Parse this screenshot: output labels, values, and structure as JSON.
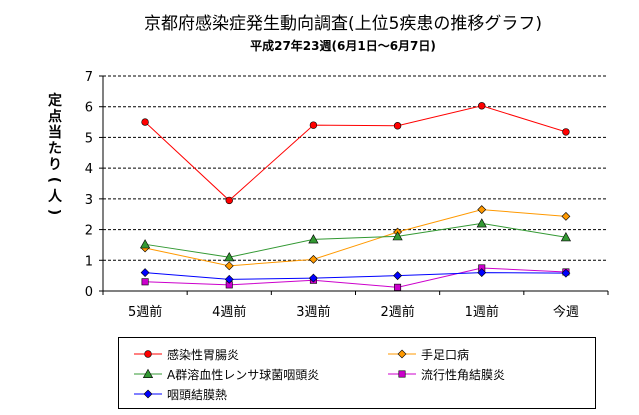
{
  "chart_data": {
    "type": "line",
    "title": "京都府感染症発生動向調査(上位5疾患の推移グラフ)",
    "subtitle": "平成27年23週(6月1日～6月7日)",
    "ylabel": "定点当たり(人)",
    "xlabel": "",
    "categories": [
      "5週前",
      "4週前",
      "3週前",
      "2週前",
      "1週前",
      "今週"
    ],
    "ylim": [
      0,
      7
    ],
    "yticks": [
      "0",
      "1",
      "2",
      "3",
      "4",
      "5",
      "6",
      "7"
    ],
    "grid": "horizontal-dashed",
    "legend_position": "bottom",
    "series": [
      {
        "name": "感染性胃腸炎",
        "color": "#ff0000",
        "marker": "circle",
        "values": [
          5.5,
          2.95,
          5.4,
          5.38,
          6.03,
          5.18
        ]
      },
      {
        "name": "手足口病",
        "color": "#ff9900",
        "marker": "diamond",
        "values": [
          1.4,
          0.82,
          1.03,
          1.92,
          2.65,
          2.43
        ]
      },
      {
        "name": "A群溶血性レンサ球菌咽頭炎",
        "color": "#339933",
        "marker": "triangle",
        "values": [
          1.52,
          1.1,
          1.68,
          1.78,
          2.2,
          1.75
        ]
      },
      {
        "name": "流行性角結膜炎",
        "color": "#cc00cc",
        "marker": "square",
        "values": [
          0.3,
          0.2,
          0.35,
          0.12,
          0.75,
          0.62
        ]
      },
      {
        "name": "咽頭結膜熱",
        "color": "#0000ff",
        "marker": "diamond",
        "values": [
          0.6,
          0.38,
          0.42,
          0.5,
          0.6,
          0.58
        ]
      }
    ]
  }
}
